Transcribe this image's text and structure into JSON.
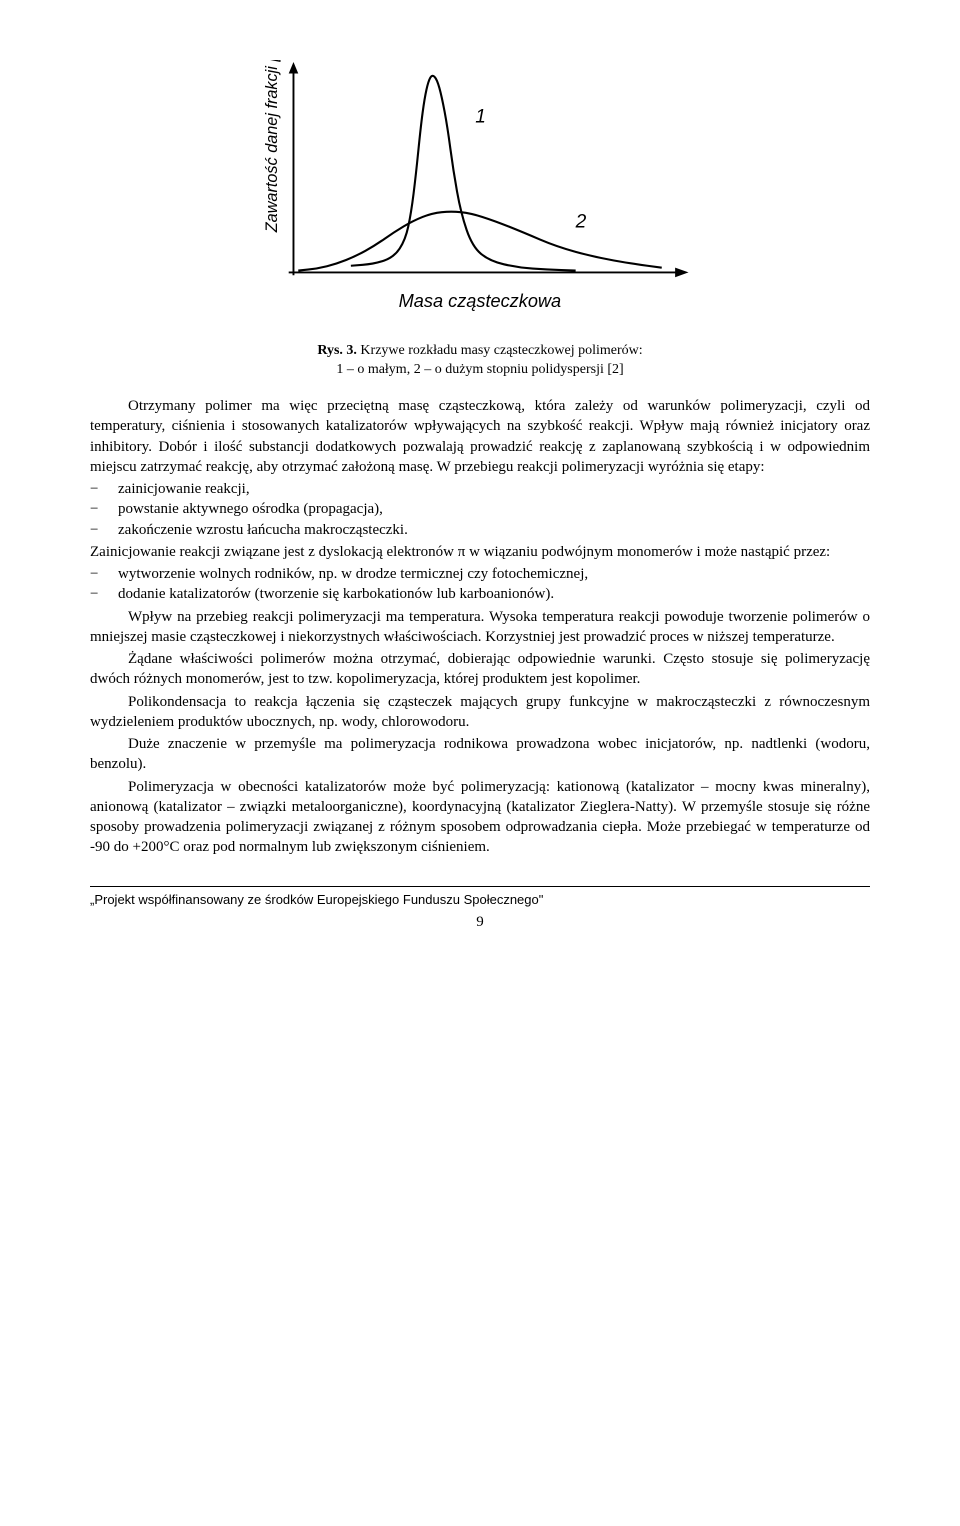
{
  "chart": {
    "type": "line",
    "y_axis_label": "Zawartość danej frakcji [%]",
    "x_axis_label": "Masa cząsteczkowa",
    "series_labels": {
      "s1": "1",
      "s2": "2"
    },
    "stroke_color": "#000000",
    "stroke_width": 2,
    "axis_arrow": true,
    "curves": {
      "s1": [
        [
          95,
          215
        ],
        [
          120,
          213
        ],
        [
          140,
          206
        ],
        [
          152,
          188
        ],
        [
          158,
          160
        ],
        [
          163,
          120
        ],
        [
          168,
          70
        ],
        [
          172,
          40
        ],
        [
          176,
          22
        ],
        [
          180,
          15
        ],
        [
          185,
          20
        ],
        [
          190,
          38
        ],
        [
          196,
          70
        ],
        [
          202,
          115
        ],
        [
          210,
          160
        ],
        [
          222,
          195
        ],
        [
          240,
          210
        ],
        [
          270,
          217
        ],
        [
          300,
          219
        ],
        [
          330,
          220
        ]
      ],
      "s2": [
        [
          40,
          220
        ],
        [
          60,
          218
        ],
        [
          80,
          213
        ],
        [
          100,
          205
        ],
        [
          120,
          194
        ],
        [
          140,
          180
        ],
        [
          160,
          168
        ],
        [
          180,
          160
        ],
        [
          200,
          158
        ],
        [
          220,
          160
        ],
        [
          245,
          168
        ],
        [
          275,
          180
        ],
        [
          310,
          195
        ],
        [
          350,
          206
        ],
        [
          390,
          213
        ],
        [
          420,
          217
        ]
      ]
    },
    "label_positions": {
      "s1": [
        225,
        65
      ],
      "s2": [
        330,
        175
      ]
    }
  },
  "caption": {
    "prefix": "Rys. 3.",
    "line1": " Krzywe rozkładu masy cząsteczkowej polimerów:",
    "line2": "1 – o małym, 2 – o dużym stopniu polidyspersji [2]"
  },
  "para1a": "Otrzymany polimer ma więc przeciętną masę cząsteczkową, która zależy od warunków polimeryzacji, czyli od temperatury, ciśnienia i stosowanych katalizatorów wpływających na szybkość reakcji. Wpływ mają również inicjatory oraz inhibitory. Dobór i ilość substancji dodatkowych pozwalają prowadzić reakcję z zaplanowaną szybkością i w odpowiednim miejscu zatrzymać reakcję, aby otrzymać założoną masę. W przebiegu reakcji polimeryzacji wyróżnia się etapy:",
  "list1": [
    "zainicjowanie reakcji,",
    "powstanie aktywnego ośrodka (propagacja),",
    "zakończenie wzrostu łańcucha makrocząsteczki."
  ],
  "para1b": "Zainicjowanie reakcji związane jest z dyslokacją elektronów π w wiązaniu podwójnym monomerów i może nastąpić przez:",
  "list2": [
    "wytworzenie wolnych rodników, np. w drodze termicznej czy fotochemicznej,",
    "dodanie katalizatorów (tworzenie się karbokationów lub karboanionów)."
  ],
  "para2": "Wpływ na przebieg reakcji polimeryzacji ma temperatura. Wysoka temperatura reakcji powoduje tworzenie polimerów o mniejszej masie cząsteczkowej i niekorzystnych właściwościach. Korzystniej jest prowadzić proces w niższej temperaturze.",
  "para3": "Żądane właściwości polimerów można otrzymać, dobierając odpowiednie warunki. Często stosuje się polimeryzację dwóch różnych monomerów, jest to tzw. kopolimeryzacja, której produktem jest kopolimer.",
  "para4": "Polikondensacja to reakcja łączenia się cząsteczek mających grupy funkcyjne w makrocząsteczki z równoczesnym wydzieleniem produktów ubocznych, np. wody, chlorowodoru.",
  "para5": "Duże znaczenie w przemyśle ma polimeryzacja rodnikowa prowadzona wobec inicjatorów, np. nadtlenki (wodoru, benzolu).",
  "para6": "Polimeryzacja w obecności katalizatorów może być polimeryzacją: kationową (katalizator – mocny kwas mineralny), anionową (katalizator – związki metaloorganiczne), koordynacyjną (katalizator Zieglera-Natty). W przemyśle stosuje się różne sposoby prowadzenia polimeryzacji związanej z różnym sposobem odprowadzania ciepła. Może przebiegać w temperaturze  od -90 do +200°C oraz pod normalnym lub zwiększonym ciśnieniem.",
  "footer": "„Projekt współfinansowany ze środków Europejskiego Funduszu Społecznego\"",
  "page_number": "9"
}
